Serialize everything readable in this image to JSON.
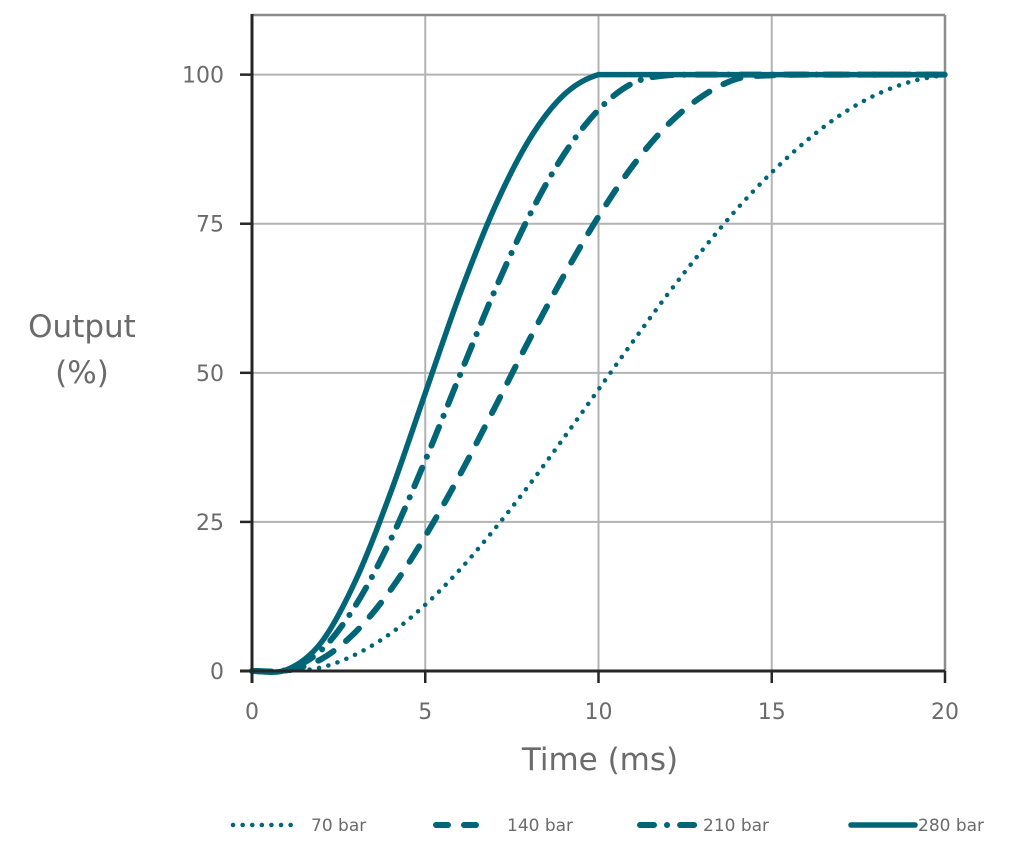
{
  "chart_data": {
    "type": "line",
    "title": "",
    "xlabel": "Time (ms)",
    "ylabel": "Output\n(%)",
    "ylabel_lines": [
      "Output",
      "(%)"
    ],
    "xlim": [
      0,
      20
    ],
    "ylim": [
      0,
      110
    ],
    "x_ticks": [
      0,
      5,
      10,
      15,
      20
    ],
    "y_ticks": [
      0,
      25,
      50,
      75,
      100
    ],
    "grid": true,
    "legend_position": "bottom",
    "line_color": "#006677",
    "x": [
      0,
      1,
      2,
      3,
      4,
      5,
      6,
      7,
      8,
      9,
      10,
      11,
      12,
      13,
      14,
      15,
      16,
      17,
      18,
      19,
      20
    ],
    "series": [
      {
        "name": "70 bar",
        "style": "dotted",
        "values": [
          0,
          0.0,
          0.6,
          2.8,
          6.3,
          11.1,
          17.0,
          23.8,
          31.2,
          39.1,
          47.2,
          55.3,
          63.2,
          70.6,
          77.5,
          83.6,
          88.9,
          93.3,
          96.6,
          98.8,
          100
        ]
      },
      {
        "name": "140 bar",
        "style": "dashed",
        "values": [
          0,
          0.1,
          2.0,
          6.6,
          13.6,
          22.6,
          32.9,
          44.1,
          55.5,
          66.3,
          76.2,
          84.8,
          91.6,
          96.4,
          99.3,
          99.9,
          100,
          100,
          100,
          100,
          100
        ]
      },
      {
        "name": "210 bar",
        "style": "dash-dot",
        "values": [
          0,
          0.2,
          3.5,
          11.1,
          22.0,
          35.3,
          49.6,
          63.7,
          76.3,
          86.6,
          94.1,
          98.6,
          99.9,
          100,
          100,
          100,
          100,
          100,
          100,
          100,
          100
        ]
      },
      {
        "name": "280 bar",
        "style": "solid",
        "values": [
          0,
          0.2,
          4.8,
          15.3,
          29.9,
          46.6,
          63.2,
          77.7,
          89.1,
          96.6,
          100,
          100,
          100,
          100,
          100,
          100,
          100,
          100,
          100,
          100,
          100
        ]
      }
    ]
  },
  "legend": {
    "items": [
      {
        "label": "70 bar"
      },
      {
        "label": "140 bar"
      },
      {
        "label": "210 bar"
      },
      {
        "label": "280 bar"
      }
    ]
  },
  "axes": {
    "x_title": "Time (ms)",
    "y_title_line1": "Output",
    "y_title_line2": "(%)"
  }
}
